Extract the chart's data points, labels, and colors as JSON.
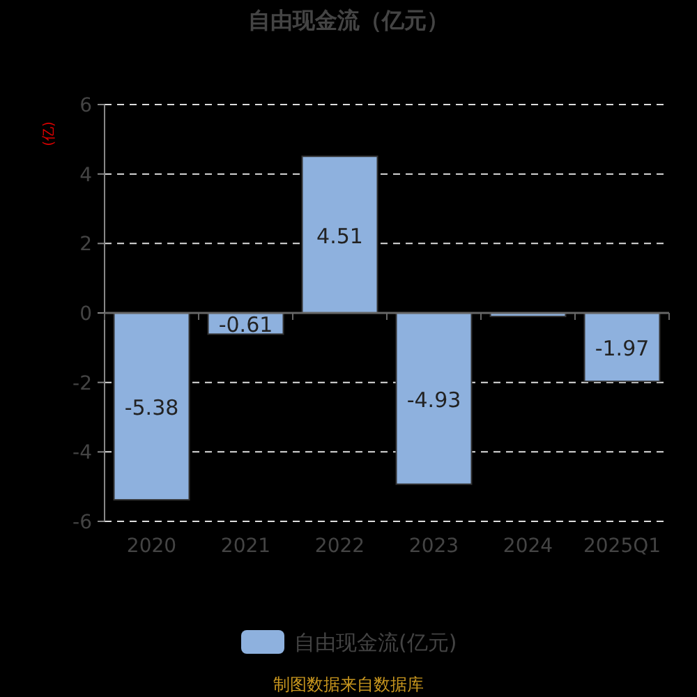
{
  "chart_data": {
    "type": "bar",
    "title": "自由现金流（亿元）",
    "ylabel": "(亿)",
    "categories": [
      "2020",
      "2021",
      "2022",
      "2023",
      "2024",
      "2025Q1"
    ],
    "series": [
      {
        "name": "自由现金流(亿元)",
        "color": "#8eb1de",
        "values": [
          -5.38,
          -0.61,
          4.51,
          -4.93,
          -0.1,
          -1.97
        ],
        "value_labels": [
          "-5.38",
          "-0.61",
          "4.51",
          "-4.93",
          null,
          "-1.97"
        ]
      }
    ],
    "ylim": [
      -6,
      6
    ],
    "yticks": [
      -6,
      -4,
      -2,
      0,
      2,
      4,
      6
    ],
    "grid": "y",
    "legend": "bottom",
    "annotations": [
      "制图数据来自数据库"
    ]
  }
}
